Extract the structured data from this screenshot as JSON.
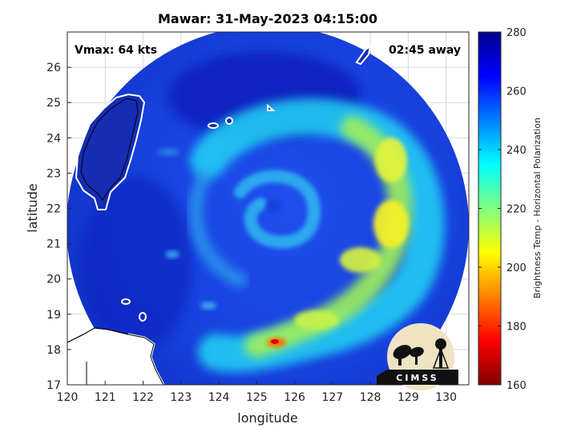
{
  "chart_data": {
    "type": "heatmap",
    "title": "Mawar: 31-May-2023 04:15:00",
    "xlabel": "longitude",
    "ylabel": "latitude",
    "xlim": [
      120,
      130.6
    ],
    "ylim": [
      17,
      27
    ],
    "xticks": [
      "120",
      "121",
      "122",
      "123",
      "124",
      "125",
      "126",
      "127",
      "128",
      "129",
      "130"
    ],
    "yticks": [
      "17",
      "18",
      "19",
      "20",
      "21",
      "22",
      "23",
      "24",
      "25",
      "26"
    ],
    "grid": true,
    "overlay_left": "Vmax: 64 kts",
    "overlay_right": "02:45 away",
    "colorbar": {
      "label": "Brightness Temp - Horizontal Polarization",
      "range": [
        160,
        280
      ],
      "ticks": [
        "160",
        "180",
        "200",
        "220",
        "240",
        "260",
        "280"
      ],
      "colormap": "jet"
    },
    "storm_center": {
      "lon": 125.4,
      "lat": 22.0
    },
    "footprint": {
      "center_lon": 125.3,
      "center_lat": 21.9,
      "radius_deg": 5.5
    },
    "logo_text": "CIMSS"
  }
}
